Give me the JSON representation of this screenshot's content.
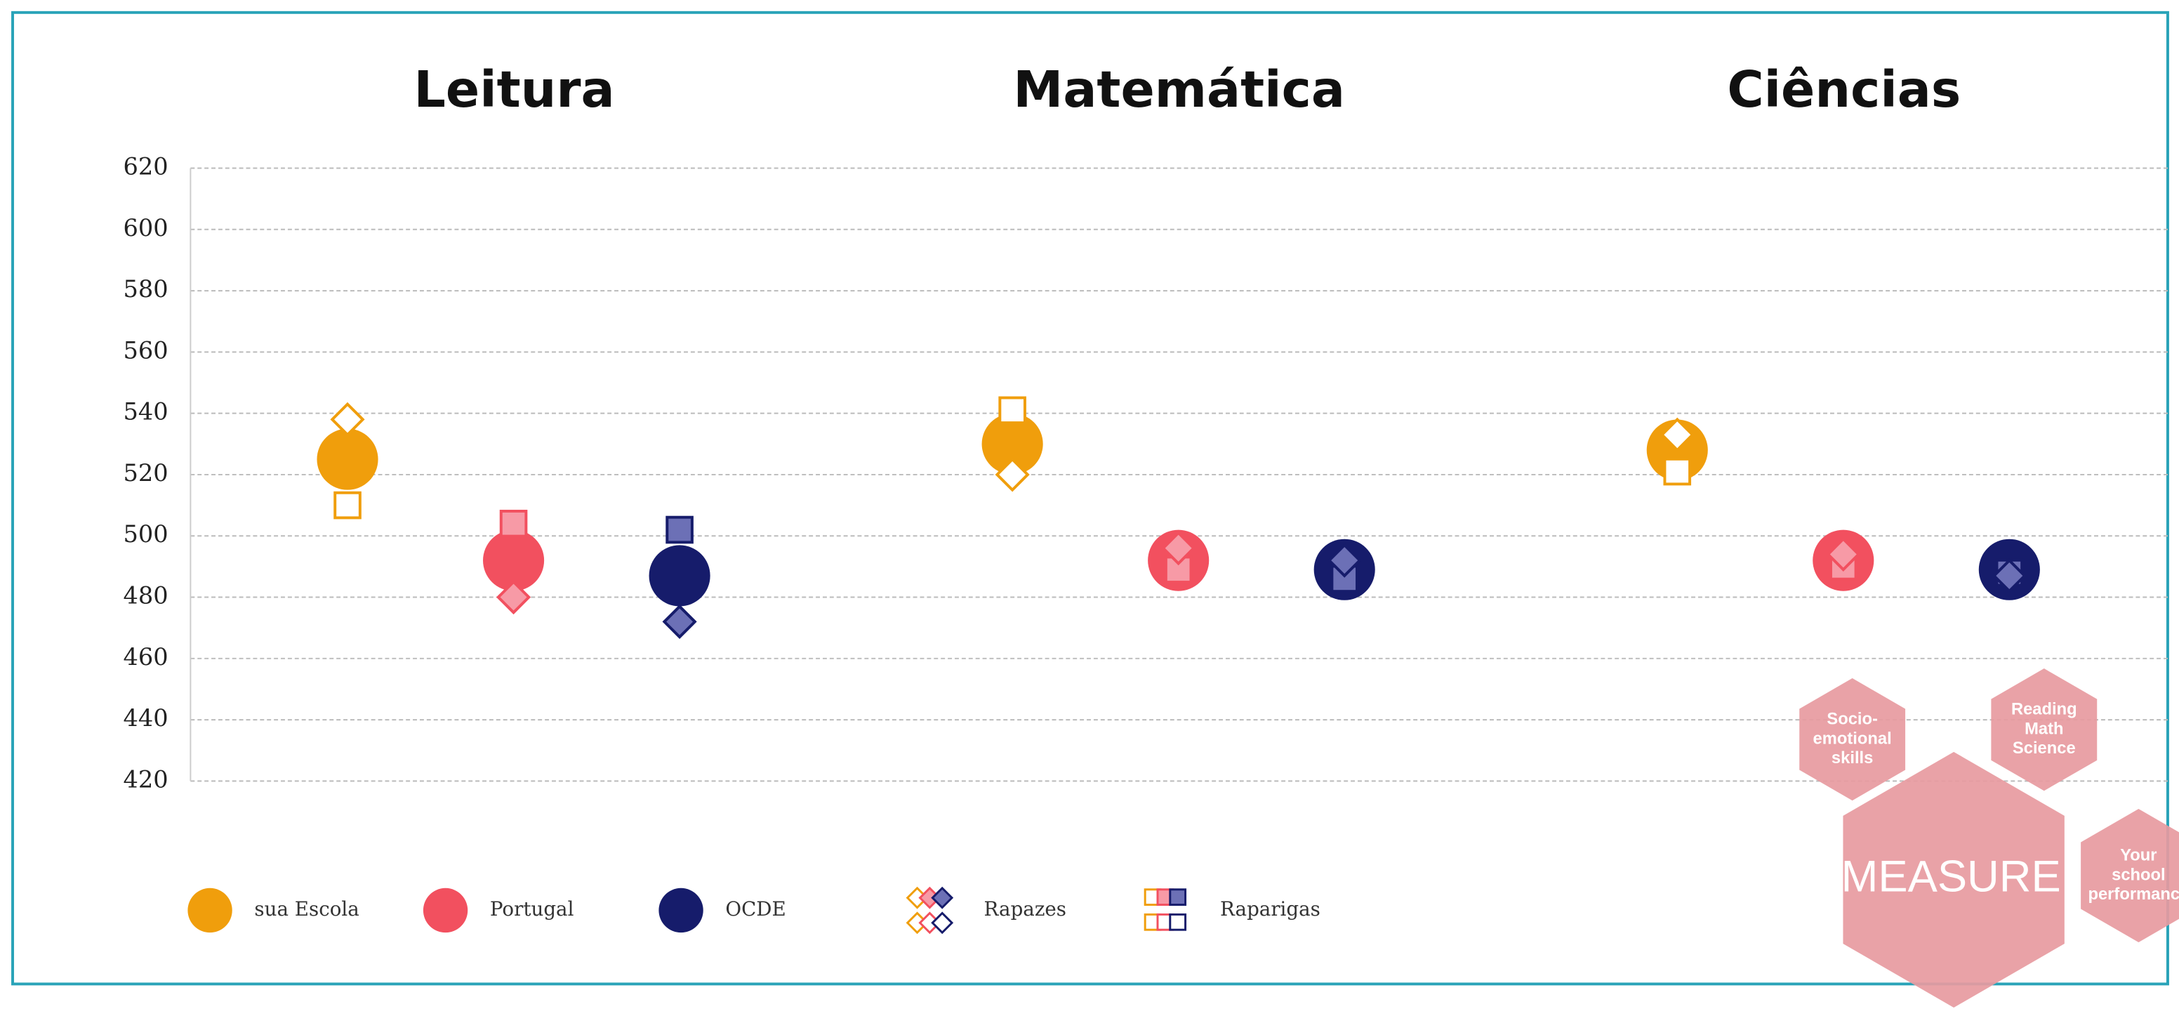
{
  "chart_data": {
    "type": "dot",
    "categories": [
      "Leitura",
      "Matemática",
      "Ciências"
    ],
    "ylim": [
      420,
      620
    ],
    "yticks": [
      420,
      440,
      460,
      480,
      500,
      520,
      540,
      560,
      580,
      600,
      620
    ],
    "grid": true,
    "subgroups": [
      "Rapazes",
      "Raparigas"
    ],
    "series": [
      {
        "name": "sua Escola",
        "color": "#f09e0c",
        "marker_fill": "#ffffff",
        "values": [
          525,
          530,
          528
        ],
        "rapazes": [
          538,
          520,
          533
        ],
        "raparigas": [
          510,
          541,
          521
        ]
      },
      {
        "name": "Portugal",
        "color": "#f2505f",
        "marker_fill": "#f79aa6",
        "values": [
          492,
          492,
          492
        ],
        "rapazes": [
          480,
          496,
          494
        ],
        "raparigas": [
          504,
          489,
          490
        ]
      },
      {
        "name": "OCDE",
        "color": "#161c6b",
        "marker_fill": "#6c70b6",
        "values": [
          487,
          489,
          489
        ],
        "rapazes": [
          472,
          492,
          487
        ],
        "raparigas": [
          502,
          486,
          488
        ]
      }
    ]
  },
  "overlay": {
    "logo": "MEASURE",
    "hexes": [
      [
        "Socio-",
        "emotional",
        "skills"
      ],
      [
        "Reading",
        "Math",
        "Science"
      ],
      [
        "Your",
        "school",
        "performance"
      ]
    ]
  }
}
